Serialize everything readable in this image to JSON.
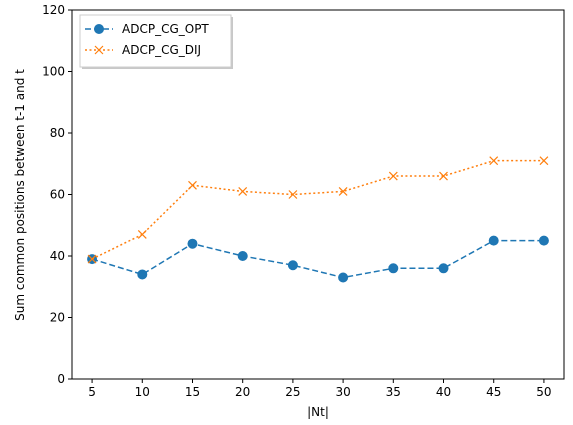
{
  "chart_data": {
    "type": "line",
    "title": "",
    "xlabel": "|Nt|",
    "ylabel": "Sum common positions between t-1 and t",
    "x": [
      5,
      10,
      15,
      20,
      25,
      30,
      35,
      40,
      45,
      50
    ],
    "xticks": [
      5,
      10,
      15,
      20,
      25,
      30,
      35,
      40,
      45,
      50
    ],
    "xlim": [
      3,
      52
    ],
    "ylim": [
      0,
      120
    ],
    "yticks": [
      0,
      20,
      40,
      60,
      80,
      100,
      120
    ],
    "grid": false,
    "legend_position": "upper-left",
    "series": [
      {
        "name": "ADCP_CG_OPT",
        "values": [
          39,
          34,
          44,
          40,
          37,
          33,
          36,
          36,
          45,
          45
        ],
        "color": "#1f77b4",
        "line_style": "dashed",
        "marker": "circle"
      },
      {
        "name": "ADCP_CG_DIJ",
        "values": [
          39,
          47,
          63,
          61,
          60,
          61,
          66,
          66,
          71,
          71
        ],
        "color": "#ff7f0e",
        "line_style": "dotted",
        "marker": "x"
      }
    ]
  }
}
